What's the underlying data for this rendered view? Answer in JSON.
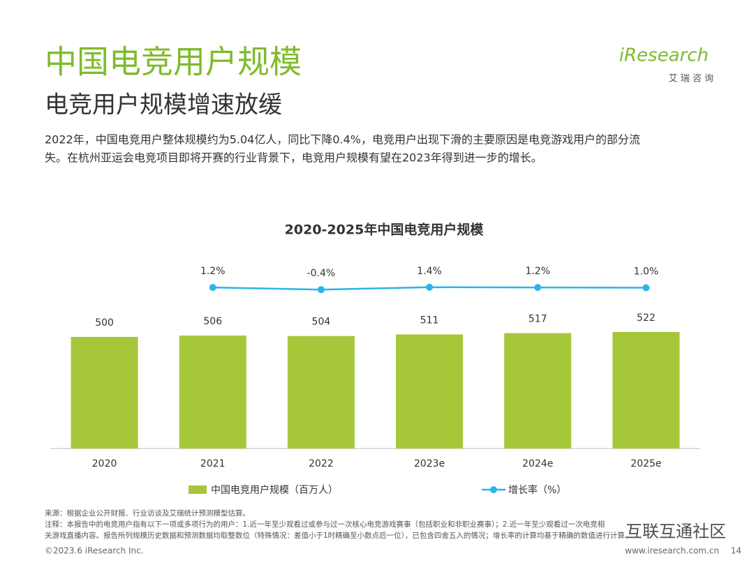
{
  "header": {
    "title": "中国电竞用户规模",
    "subtitle": "电竞用户规模增速放缓",
    "logo": "iResearch",
    "logo_sub": "艾 瑞 咨 询",
    "summary": [
      "2022年，中国电竞用户整体规模约为5.04亿人，同比下降0.4%，电竞用户出现下滑的主要原因是电竞游戏用户的部分流",
      "失。在杭州亚运会电竞项目即将开赛的行业背景下，电竞用户规模有望在2023年得到进一步的增长。"
    ]
  },
  "chart_data": {
    "type": "bar",
    "title": "2020-2025年中国电竞用户规模",
    "categories": [
      "2020",
      "2021",
      "2022",
      "2023e",
      "2024e",
      "2025e"
    ],
    "series": [
      {
        "name": "中国电竞用户规模（百万人）",
        "color": "#a6c73a",
        "values": [
          500,
          506,
          504,
          511,
          517,
          522
        ]
      },
      {
        "name": "增长率（%）",
        "color": "#2ab6e8",
        "type": "line",
        "axis": "y2",
        "values": [
          null,
          1.2,
          -0.4,
          1.4,
          1.2,
          1.0
        ],
        "value_labels": [
          null,
          "1.2%",
          "-0.4%",
          "1.4%",
          "1.2%",
          "1.0%"
        ]
      }
    ],
    "ylim": [
      0,
      1000
    ],
    "y2lim": [
      -120,
      48
    ],
    "grid": false,
    "legend": "bottom"
  },
  "footer": {
    "notes": [
      "来源：根据企业公开财报、行业访谈及艾瑞统计预测模型估算。",
      "注释：本报告中的电竞用户指有以下一项或多项行为的用户：1.近一年至少观看过或参与过一次核心电竞游戏赛事（包括职业和非职业赛事）；2.近一年至少观看过一次电竞相",
      "关游戏直播内容。报告所列规模历史数据和预测数据均取整数位（特殊情况：差值小于1时精确至小数点后一位），已包含四舍五入的情况；增长率的计算均基于精确的数值进行计算。"
    ],
    "watermark": "互联互通社区",
    "copyright": "©2023.6 iResearch Inc.",
    "website": "www.iresearch.com.cn",
    "page": "14"
  }
}
